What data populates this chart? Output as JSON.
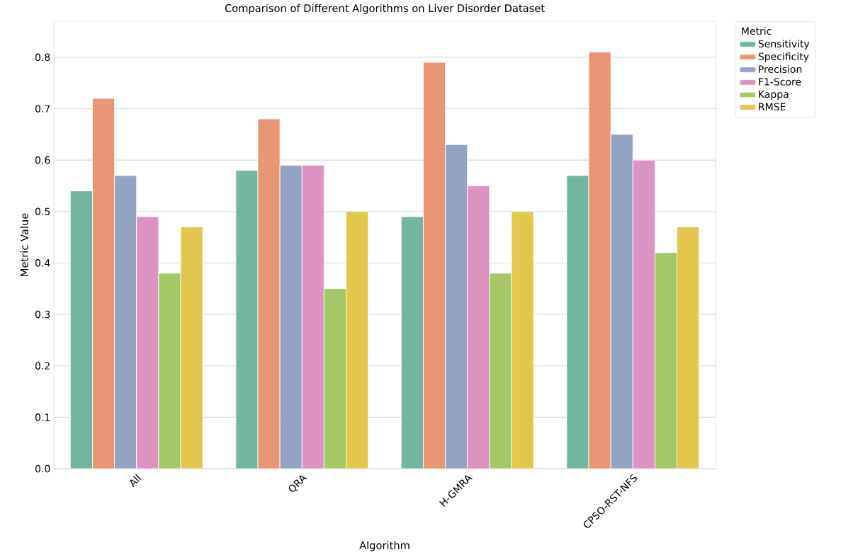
{
  "chart_data": {
    "type": "bar",
    "title": "Comparison of Different Algorithms on Liver Disorder Dataset",
    "xlabel": "Algorithm",
    "ylabel": "Metric Value",
    "legend_title": "Metric",
    "categories": [
      "All",
      "QRA",
      "H-GMRA",
      "CPSO-RST-NFS"
    ],
    "series": [
      {
        "name": "Sensitivity",
        "color": "#72b6a1",
        "values": [
          0.54,
          0.58,
          0.49,
          0.57
        ]
      },
      {
        "name": "Specificity",
        "color": "#e99675",
        "values": [
          0.72,
          0.68,
          0.79,
          0.81
        ]
      },
      {
        "name": "Precision",
        "color": "#95a3c3",
        "values": [
          0.57,
          0.59,
          0.63,
          0.65
        ]
      },
      {
        "name": "F1-Score",
        "color": "#db94c0",
        "values": [
          0.49,
          0.59,
          0.55,
          0.6
        ]
      },
      {
        "name": "Kappa",
        "color": "#a4c866",
        "values": [
          0.38,
          0.35,
          0.38,
          0.42
        ]
      },
      {
        "name": "RMSE",
        "color": "#e1c84c",
        "values": [
          0.47,
          0.5,
          0.5,
          0.47
        ]
      }
    ],
    "ylim": [
      0,
      0.87
    ],
    "yticks": [
      {
        "value": 0,
        "label": "0.0"
      },
      0.1,
      0.2,
      0.3,
      0.4,
      0.5,
      0.6,
      0.7,
      0.8
    ],
    "grid": "y",
    "legend": "top right"
  }
}
